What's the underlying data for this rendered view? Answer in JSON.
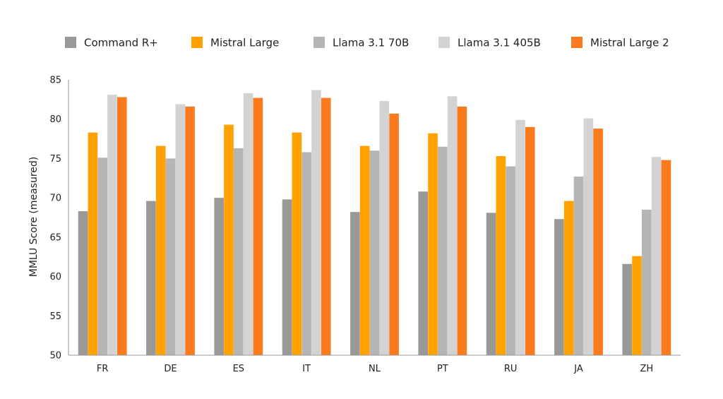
{
  "chart_data": {
    "type": "bar",
    "title": "",
    "xlabel": "",
    "ylabel": "MMLU Score (measured)",
    "ylim": [
      50,
      85
    ],
    "yticks": [
      50,
      55,
      60,
      65,
      70,
      75,
      80,
      85
    ],
    "grid": false,
    "legend_position": "top",
    "categories": [
      "FR",
      "DE",
      "ES",
      "IT",
      "NL",
      "PT",
      "RU",
      "JA",
      "ZH"
    ],
    "series": [
      {
        "name": "Command R+",
        "color": "#999999",
        "values": [
          68.3,
          69.6,
          70.0,
          69.8,
          68.2,
          70.8,
          68.1,
          67.3,
          61.6
        ]
      },
      {
        "name": "Mistral Large",
        "color": "#ffa200",
        "values": [
          78.3,
          76.6,
          79.3,
          78.3,
          76.6,
          78.2,
          75.3,
          69.6,
          62.6
        ]
      },
      {
        "name": "Llama 3.1 70B",
        "color": "#b5b5b5",
        "values": [
          75.1,
          75.0,
          76.3,
          75.8,
          76.0,
          76.5,
          74.0,
          72.7,
          68.5
        ]
      },
      {
        "name": "Llama 3.1 405B",
        "color": "#d3d3d3",
        "values": [
          83.1,
          81.9,
          83.3,
          83.7,
          82.3,
          82.9,
          79.9,
          80.1,
          75.2
        ]
      },
      {
        "name": "Mistral Large 2",
        "color": "#fa7a1e",
        "values": [
          82.8,
          81.6,
          82.7,
          82.7,
          80.7,
          81.6,
          79.0,
          78.8,
          74.8
        ]
      }
    ]
  }
}
